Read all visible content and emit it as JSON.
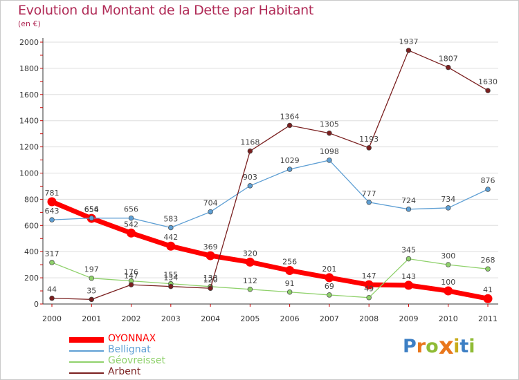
{
  "header": {
    "title": "Evolution du Montant de la Dette par Habitant",
    "subtitle": "(en €)"
  },
  "colors": {
    "title": "#b02a56",
    "axis": "#cc0000",
    "grid": "#dddddd"
  },
  "logo": {
    "letters": [
      "P",
      "r",
      "o",
      "x",
      "i",
      "t",
      "i"
    ],
    "colors": [
      "#3d7fc4",
      "#e9761b",
      "#8fbb35",
      "#e9761b",
      "#c8ab1a",
      "#3d7fc4",
      "#8fbb35"
    ]
  },
  "chart_data": {
    "type": "line",
    "title": "Evolution du Montant de la Dette par Habitant",
    "subtitle": "(en €)",
    "xlabel": "",
    "ylabel": "",
    "x": [
      "2000",
      "2001",
      "2002",
      "2003",
      "2004",
      "2005",
      "2006",
      "2007",
      "2008",
      "2009",
      "2010",
      "2011"
    ],
    "ylim": [
      0,
      2000
    ],
    "yticks": [
      0,
      200,
      400,
      600,
      800,
      1000,
      1200,
      1400,
      1600,
      1800,
      2000
    ],
    "grid": true,
    "legend_position": "bottom-left",
    "series": [
      {
        "name": "OYONNAX",
        "color": "#ff0000",
        "values": [
          781,
          654,
          542,
          442,
          369,
          320,
          256,
          201,
          147,
          143,
          100,
          41
        ]
      },
      {
        "name": "Bellignat",
        "color": "#5e9fd4",
        "values": [
          643,
          656,
          656,
          583,
          704,
          903,
          1029,
          1098,
          777,
          724,
          734,
          876
        ]
      },
      {
        "name": "Géovreisset",
        "color": "#8fd16b",
        "values": [
          317,
          197,
          176,
          155,
          133,
          112,
          91,
          69,
          49,
          345,
          300,
          268
        ]
      },
      {
        "name": "Arbent",
        "color": "#7a1f1f",
        "values": [
          44,
          35,
          147,
          134,
          120,
          1168,
          1364,
          1305,
          1193,
          1937,
          1807,
          1630
        ]
      }
    ]
  }
}
